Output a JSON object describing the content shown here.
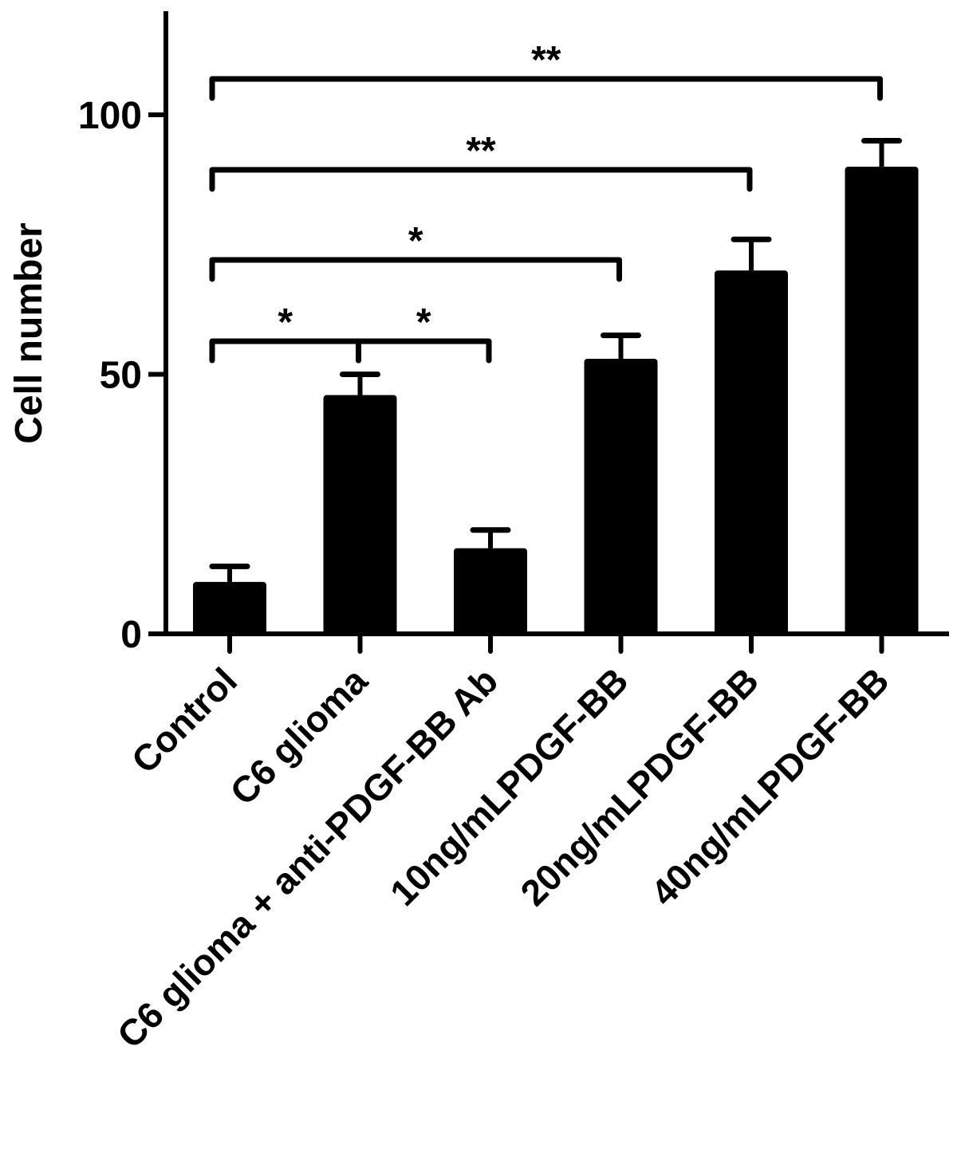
{
  "chart_data": {
    "type": "bar",
    "ylabel": "Cell number",
    "xlabel": "",
    "ylim": [
      0,
      120
    ],
    "yticks": [
      0,
      50,
      100
    ],
    "ytick_labels": [
      "0",
      "50",
      "100"
    ],
    "categories": [
      "Control",
      "C6 glioma",
      "C6 glioma + anti-PDGF-BB Ab",
      "10ng/mLPDGF-BB",
      "20ng/mLPDGF-BB",
      "40ng/mLPDGF-BB"
    ],
    "values": [
      10,
      46,
      16.5,
      53,
      70,
      90
    ],
    "errors": [
      3,
      4,
      3.5,
      4.5,
      6,
      5
    ],
    "bar_color": "#000000",
    "grid": false,
    "significance": [
      {
        "from": 0,
        "to": 1,
        "label": "*"
      },
      {
        "from": 1,
        "to": 2,
        "label": "*"
      },
      {
        "from": 0,
        "to": 3,
        "label": "*"
      },
      {
        "from": 0,
        "to": 4,
        "label": "**"
      },
      {
        "from": 0,
        "to": 5,
        "label": "**"
      }
    ]
  }
}
